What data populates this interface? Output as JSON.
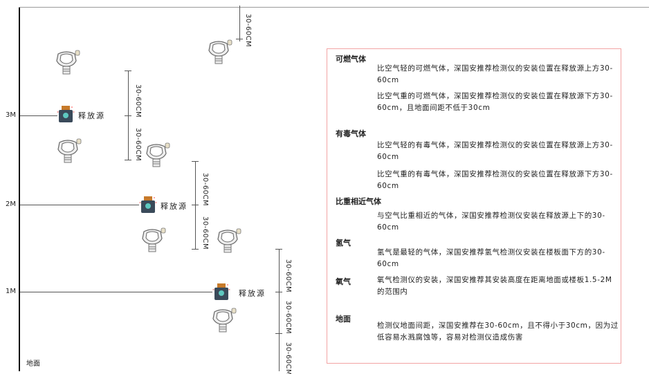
{
  "levels": {
    "m3": "3M",
    "m2": "2M",
    "m1": "1M",
    "ground": "地面"
  },
  "dimension_label": "30-60CM",
  "source_label": "释放源",
  "colors": {
    "panel_border": "#f2a3a3",
    "source_body": "#3a4a5a",
    "source_cap": "#c77a2a"
  },
  "panel": {
    "s1": {
      "title": "可燃气体",
      "p1": "比空气轻的可燃气体，深国安推荐检测仪的安装位置在释放源上方30-60cm",
      "p2": "比空气重的可燃气体，深国安推荐检测仪的安装位置在释放源下方30-60cm，且地面间距不低于30cm"
    },
    "s2": {
      "title": "有毒气体",
      "p1": "比空气轻的有毒气体，深国安推荐检测仪的安装位置在释放源上方30-60cm",
      "p2": "比空气重的有毒气体，深国安推荐检测仪的安装位置在释放源下方30-60cm"
    },
    "s3": {
      "title": "比重相近气体",
      "p1": "与空气比重相近的气体，深国安推荐检测仪安装在释放源上下的30-60cm"
    },
    "s4": {
      "title": "氢气",
      "p1": "氢气是最轻的气体，深国安推荐氢气检测仪安装在楼板面下方的30-60cm"
    },
    "s5": {
      "title": "氧气",
      "p1": "氧气检测仪的安装，深国安推荐其安装高度在距离地面或楼板1.5-2M的范围内"
    },
    "s6": {
      "title": "地面",
      "p1": "检测仪地面间距，深国安推荐在30-60cm，且不得小于30cm，因为过低容易水溅腐蚀等，容易对检测仪造成伤害"
    }
  }
}
